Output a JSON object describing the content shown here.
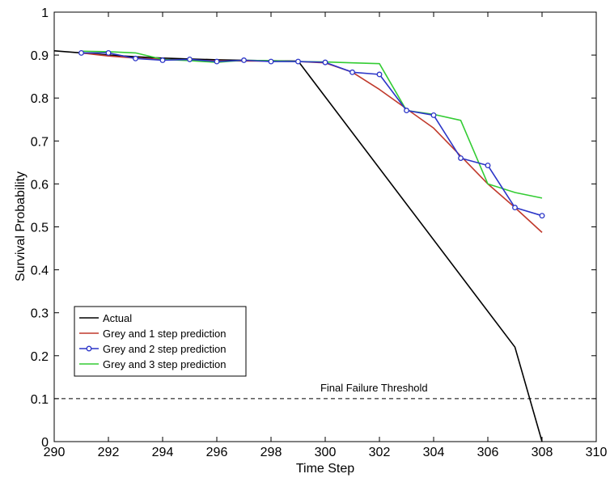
{
  "chart_data": {
    "type": "line",
    "xlabel": "Time Step",
    "ylabel": "Survival Probability",
    "xlim": [
      290,
      310
    ],
    "ylim": [
      0,
      1
    ],
    "x_ticks": [
      "290",
      "292",
      "294",
      "296",
      "298",
      "300",
      "302",
      "304",
      "306",
      "308",
      "310"
    ],
    "y_ticks": [
      "0",
      "0.1",
      "0.2",
      "0.3",
      "0.4",
      "0.5",
      "0.6",
      "0.7",
      "0.8",
      "0.9",
      "1"
    ],
    "series": [
      {
        "name": "Actual",
        "color": "#000000",
        "marker": "none",
        "points": [
          [
            290,
            0.91
          ],
          [
            291,
            0.905
          ],
          [
            292,
            0.9
          ],
          [
            293,
            0.896
          ],
          [
            294,
            0.893
          ],
          [
            295,
            0.891
          ],
          [
            296,
            0.889
          ],
          [
            297,
            0.888
          ],
          [
            298,
            0.887
          ],
          [
            299,
            0.886
          ],
          [
            307,
            0.22
          ],
          [
            308,
            0.0
          ]
        ]
      },
      {
        "name": "Grey and 1 step prediction",
        "color": "#c0392b",
        "marker": "none",
        "points": [
          [
            291,
            0.905
          ],
          [
            292,
            0.898
          ],
          [
            293,
            0.893
          ],
          [
            294,
            0.89
          ],
          [
            295,
            0.888
          ],
          [
            296,
            0.887
          ],
          [
            297,
            0.886
          ],
          [
            298,
            0.886
          ],
          [
            299,
            0.885
          ],
          [
            300,
            0.882
          ],
          [
            301,
            0.86
          ],
          [
            302,
            0.82
          ],
          [
            303,
            0.775
          ],
          [
            304,
            0.73
          ],
          [
            305,
            0.665
          ],
          [
            306,
            0.6
          ],
          [
            307,
            0.545
          ],
          [
            308,
            0.487
          ]
        ]
      },
      {
        "name": "Grey and 2 step prediction",
        "color": "#2b35c8",
        "marker": "circle",
        "points": [
          [
            291,
            0.905
          ],
          [
            292,
            0.905
          ],
          [
            293,
            0.892
          ],
          [
            294,
            0.888
          ],
          [
            295,
            0.89
          ],
          [
            296,
            0.885
          ],
          [
            297,
            0.888
          ],
          [
            298,
            0.885
          ],
          [
            299,
            0.885
          ],
          [
            300,
            0.883
          ],
          [
            301,
            0.86
          ],
          [
            302,
            0.855
          ],
          [
            303,
            0.771
          ],
          [
            304,
            0.76
          ],
          [
            305,
            0.66
          ],
          [
            306,
            0.643
          ],
          [
            307,
            0.545
          ],
          [
            308,
            0.526
          ]
        ]
      },
      {
        "name": "Grey and 3 step prediction",
        "color": "#33cc33",
        "marker": "none",
        "points": [
          [
            291,
            0.909
          ],
          [
            292,
            0.908
          ],
          [
            293,
            0.905
          ],
          [
            294,
            0.89
          ],
          [
            295,
            0.887
          ],
          [
            296,
            0.883
          ],
          [
            297,
            0.888
          ],
          [
            298,
            0.887
          ],
          [
            299,
            0.885
          ],
          [
            300,
            0.884
          ],
          [
            301,
            0.882
          ],
          [
            302,
            0.88
          ],
          [
            303,
            0.771
          ],
          [
            304,
            0.762
          ],
          [
            305,
            0.748
          ],
          [
            306,
            0.6
          ],
          [
            307,
            0.58
          ],
          [
            308,
            0.567
          ]
        ]
      }
    ],
    "threshold": {
      "y": 0.1,
      "label": "Final Failure Threshold",
      "label_x": 301.8,
      "color": "#000000",
      "style": "dashed"
    },
    "legend_position": "lower-left",
    "grid": false
  }
}
